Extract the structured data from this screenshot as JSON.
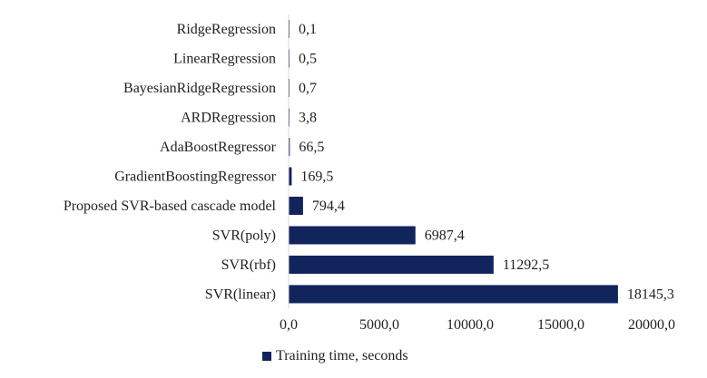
{
  "chart_data": {
    "type": "bar",
    "orientation": "horizontal",
    "categories": [
      "RidgeRegression",
      "LinearRegression",
      "BayesianRidgeRegression",
      "ARDRegression",
      "AdaBoostRegressor",
      "GradientBoostingRegressor",
      "Proposed SVR-based cascade model",
      "SVR(poly)",
      "SVR(rbf)",
      "SVR(linear)"
    ],
    "series": [
      {
        "name": "Training time, seconds",
        "values": [
          0.1,
          0.5,
          0.7,
          3.8,
          66.5,
          169.5,
          794.4,
          6987.4,
          11292.5,
          18145.3
        ],
        "labels": [
          "0,1",
          "0,5",
          "0,7",
          "3,8",
          "66,5",
          "169,5",
          "794,4",
          "6987,4",
          "11292,5",
          "18145,3"
        ],
        "color": "#12245c"
      }
    ],
    "xlim": [
      0,
      20000
    ],
    "x_ticks": [
      0,
      5000,
      10000,
      15000,
      20000
    ],
    "x_tick_labels": [
      "0,0",
      "5000,0",
      "10000,0",
      "15000,0",
      "20000,0"
    ],
    "grid": false,
    "legend_position": "bottom"
  }
}
